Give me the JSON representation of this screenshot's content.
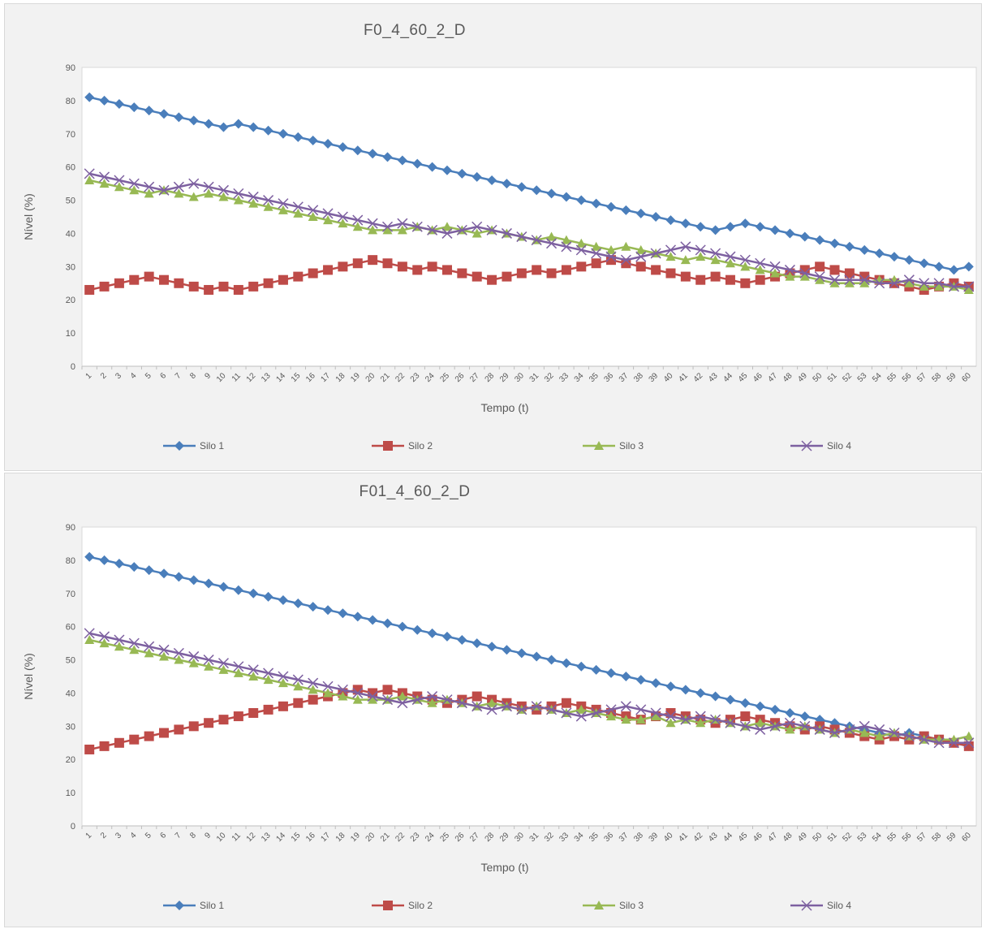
{
  "chart_data": [
    {
      "type": "line",
      "title": "F0_4_60_2_D",
      "xlabel": "Tempo (t)",
      "ylabel": "Nível (%)",
      "ylim": [
        0,
        90
      ],
      "yticks": [
        0,
        10,
        20,
        30,
        40,
        50,
        60,
        70,
        80,
        90
      ],
      "x": [
        1,
        2,
        3,
        4,
        5,
        6,
        7,
        8,
        9,
        10,
        11,
        12,
        13,
        14,
        15,
        16,
        17,
        18,
        19,
        20,
        21,
        22,
        23,
        24,
        25,
        26,
        27,
        28,
        29,
        30,
        31,
        32,
        33,
        34,
        35,
        36,
        37,
        38,
        39,
        40,
        41,
        42,
        43,
        44,
        45,
        46,
        47,
        48,
        49,
        50,
        51,
        52,
        53,
        54,
        55,
        56,
        57,
        58,
        59,
        60
      ],
      "grid": false,
      "legend_position": "bottom",
      "series": [
        {
          "name": "Silo 1",
          "color": "#4a7ebb",
          "marker": "diamond",
          "values": [
            81,
            80,
            79,
            78,
            77,
            76,
            75,
            74,
            73,
            72,
            73,
            72,
            71,
            70,
            69,
            68,
            67,
            66,
            65,
            64,
            63,
            62,
            61,
            60,
            59,
            58,
            57,
            56,
            55,
            54,
            53,
            52,
            51,
            50,
            49,
            48,
            47,
            46,
            45,
            44,
            43,
            42,
            41,
            42,
            43,
            42,
            41,
            40,
            39,
            38,
            37,
            36,
            35,
            34,
            33,
            32,
            31,
            30,
            29,
            30
          ]
        },
        {
          "name": "Silo 2",
          "color": "#be4b48",
          "marker": "square",
          "values": [
            23,
            24,
            25,
            26,
            27,
            26,
            25,
            24,
            23,
            24,
            23,
            24,
            25,
            26,
            27,
            28,
            29,
            30,
            31,
            32,
            31,
            30,
            29,
            30,
            29,
            28,
            27,
            26,
            27,
            28,
            29,
            28,
            29,
            30,
            31,
            32,
            31,
            30,
            29,
            28,
            27,
            26,
            27,
            26,
            25,
            26,
            27,
            28,
            29,
            30,
            29,
            28,
            27,
            26,
            25,
            24,
            23,
            24,
            25,
            24
          ]
        },
        {
          "name": "Silo 3",
          "color": "#98b954",
          "marker": "triangle",
          "values": [
            56,
            55,
            54,
            53,
            52,
            53,
            52,
            51,
            52,
            51,
            50,
            49,
            48,
            47,
            46,
            45,
            44,
            43,
            42,
            41,
            41,
            41,
            42,
            41,
            42,
            41,
            40,
            41,
            40,
            39,
            38,
            39,
            38,
            37,
            36,
            35,
            36,
            35,
            34,
            33,
            32,
            33,
            32,
            31,
            30,
            29,
            28,
            27,
            27,
            26,
            25,
            25,
            25,
            26,
            26,
            25,
            24,
            24,
            24,
            23
          ]
        },
        {
          "name": "Silo 4",
          "color": "#7d60a0",
          "marker": "x",
          "values": [
            58,
            57,
            56,
            55,
            54,
            53,
            54,
            55,
            54,
            53,
            52,
            51,
            50,
            49,
            48,
            47,
            46,
            45,
            44,
            43,
            42,
            43,
            42,
            41,
            40,
            41,
            42,
            41,
            40,
            39,
            38,
            37,
            36,
            35,
            34,
            33,
            32,
            33,
            34,
            35,
            36,
            35,
            34,
            33,
            32,
            31,
            30,
            29,
            28,
            27,
            26,
            26,
            26,
            25,
            25,
            26,
            25,
            25,
            24,
            24
          ]
        }
      ]
    },
    {
      "type": "line",
      "title": "F01_4_60_2_D",
      "xlabel": "Tempo (t)",
      "ylabel": "Nível (%)",
      "ylim": [
        0,
        90
      ],
      "yticks": [
        0,
        10,
        20,
        30,
        40,
        50,
        60,
        70,
        80,
        90
      ],
      "x": [
        1,
        2,
        3,
        4,
        5,
        6,
        7,
        8,
        9,
        10,
        11,
        12,
        13,
        14,
        15,
        16,
        17,
        18,
        19,
        20,
        21,
        22,
        23,
        24,
        25,
        26,
        27,
        28,
        29,
        30,
        31,
        32,
        33,
        34,
        35,
        36,
        37,
        38,
        39,
        40,
        41,
        42,
        43,
        44,
        45,
        46,
        47,
        48,
        49,
        50,
        51,
        52,
        53,
        54,
        55,
        56,
        57,
        58,
        59,
        60
      ],
      "grid": false,
      "legend_position": "bottom",
      "series": [
        {
          "name": "Silo 1",
          "color": "#4a7ebb",
          "marker": "diamond",
          "values": [
            81,
            80,
            79,
            78,
            77,
            76,
            75,
            74,
            73,
            72,
            71,
            70,
            69,
            68,
            67,
            66,
            65,
            64,
            63,
            62,
            61,
            60,
            59,
            58,
            57,
            56,
            55,
            54,
            53,
            52,
            51,
            50,
            49,
            48,
            47,
            46,
            45,
            44,
            43,
            42,
            41,
            40,
            39,
            38,
            37,
            36,
            35,
            34,
            33,
            32,
            31,
            30,
            29,
            28,
            27,
            28,
            27,
            26,
            25,
            24
          ]
        },
        {
          "name": "Silo 2",
          "color": "#be4b48",
          "marker": "square",
          "values": [
            23,
            24,
            25,
            26,
            27,
            28,
            29,
            30,
            31,
            32,
            33,
            34,
            35,
            36,
            37,
            38,
            39,
            40,
            41,
            40,
            41,
            40,
            39,
            38,
            37,
            38,
            39,
            38,
            37,
            36,
            35,
            36,
            37,
            36,
            35,
            34,
            33,
            32,
            33,
            34,
            33,
            32,
            31,
            32,
            33,
            32,
            31,
            30,
            29,
            30,
            29,
            28,
            27,
            26,
            27,
            26,
            27,
            26,
            25,
            24
          ]
        },
        {
          "name": "Silo 3",
          "color": "#98b954",
          "marker": "triangle",
          "values": [
            56,
            55,
            54,
            53,
            52,
            51,
            50,
            49,
            48,
            47,
            46,
            45,
            44,
            43,
            42,
            41,
            40,
            39,
            38,
            38,
            38,
            39,
            38,
            37,
            38,
            37,
            36,
            37,
            36,
            35,
            36,
            35,
            34,
            35,
            34,
            33,
            32,
            32,
            33,
            31,
            32,
            31,
            32,
            31,
            30,
            31,
            30,
            29,
            30,
            29,
            28,
            29,
            28,
            27,
            28,
            27,
            26,
            26,
            26,
            27
          ]
        },
        {
          "name": "Silo 4",
          "color": "#7d60a0",
          "marker": "x",
          "values": [
            58,
            57,
            56,
            55,
            54,
            53,
            52,
            51,
            50,
            49,
            48,
            47,
            46,
            45,
            44,
            43,
            42,
            41,
            40,
            39,
            38,
            37,
            38,
            39,
            38,
            37,
            36,
            35,
            36,
            35,
            36,
            35,
            34,
            33,
            34,
            35,
            36,
            35,
            34,
            33,
            32,
            33,
            32,
            31,
            30,
            29,
            30,
            31,
            30,
            29,
            28,
            29,
            30,
            29,
            28,
            27,
            26,
            25,
            25,
            25
          ]
        }
      ]
    }
  ]
}
